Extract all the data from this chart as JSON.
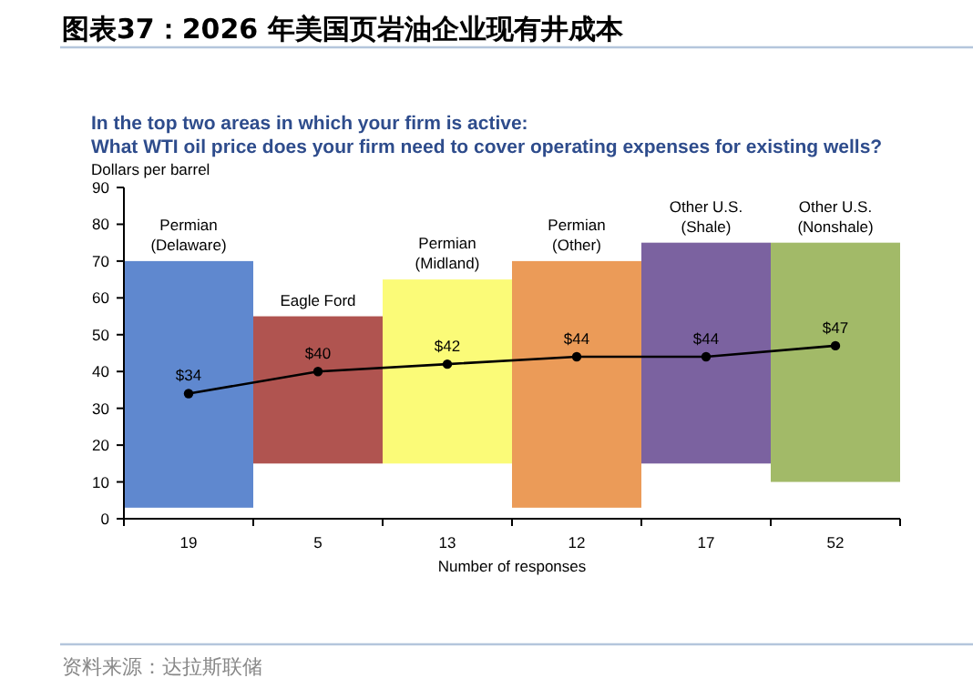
{
  "chart_data": {
    "type": "bar",
    "title": "图表37：2026 年美国页岩油企业现有井成本",
    "subtitle": "In the top two areas in which your firm is active:\nWhat WTI oil price does your firm need to cover operating expenses for existing wells?",
    "ylabel": "Dollars per barrel",
    "xlabel": "Number of responses",
    "categories": [
      "19",
      "5",
      "13",
      "12",
      "17",
      "52"
    ],
    "series": [
      {
        "base": [
          3,
          15,
          15,
          3,
          15,
          10
        ],
        "colors": [
          "#5f88cf",
          "#b05450",
          "#fbfb78",
          "#eb9b58",
          "#7b62a0",
          "#a2ba68"
        ],
        "values": [
          67,
          40,
          50,
          67,
          60,
          65
        ]
      },
      {
        "type": "line",
        "color": "#000000",
        "values": [
          34,
          40,
          42,
          44,
          44,
          47
        ],
        "value_labels": [
          "$34",
          "$40",
          "$42",
          "$44",
          "$44",
          "$47"
        ]
      }
    ],
    "marker": "circle",
    "ylim": [
      0,
      90
    ],
    "yticks": [
      0,
      10,
      20,
      30,
      40,
      50,
      60,
      70,
      80,
      90
    ],
    "grid": false,
    "annotations": [
      {
        "text": "Permian\n(Delaware)",
        "x": "19",
        "y": 70
      },
      {
        "text": "Eagle Ford",
        "x": "5",
        "y": 55
      },
      {
        "text": "Permian\n(Midland)",
        "x": "13",
        "y": 65
      },
      {
        "text": "Permian\n(Other)",
        "x": "12",
        "y": 70
      },
      {
        "text": "Other U.S.\n(Shale)",
        "x": "17",
        "y": 75
      },
      {
        "text": "Other U.S.\n(Nonshale)",
        "x": "52",
        "y": 75
      },
      "资料来源：达拉斯联储"
    ]
  }
}
